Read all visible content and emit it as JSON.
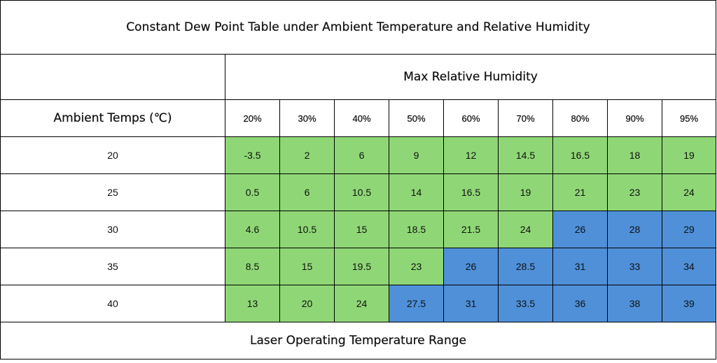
{
  "title": "Constant Dew Point Table under Ambient Temperature and Relative Humidity",
  "humidity_header": "Max Relative Humidity",
  "row_header": "Ambient Temps (℃)",
  "footer": "Laser Operating Temperature Range",
  "colors": {
    "green": "#8fd776",
    "blue": "#4f90d9"
  },
  "humidity_columns": [
    "20%",
    "30%",
    "40%",
    "50%",
    "60%",
    "70%",
    "80%",
    "90%",
    "95%"
  ],
  "rows": [
    {
      "temp": "20",
      "values": [
        "-3.5",
        "2",
        "6",
        "9",
        "12",
        "14.5",
        "16.5",
        "18",
        "19"
      ],
      "colors": [
        "green",
        "green",
        "green",
        "green",
        "green",
        "green",
        "green",
        "green",
        "green"
      ]
    },
    {
      "temp": "25",
      "values": [
        "0.5",
        "6",
        "10.5",
        "14",
        "16.5",
        "19",
        "21",
        "23",
        "24"
      ],
      "colors": [
        "green",
        "green",
        "green",
        "green",
        "green",
        "green",
        "green",
        "green",
        "green"
      ]
    },
    {
      "temp": "30",
      "values": [
        "4.6",
        "10.5",
        "15",
        "18.5",
        "21.5",
        "24",
        "26",
        "28",
        "29"
      ],
      "colors": [
        "green",
        "green",
        "green",
        "green",
        "green",
        "green",
        "blue",
        "blue",
        "blue"
      ]
    },
    {
      "temp": "35",
      "values": [
        "8.5",
        "15",
        "19.5",
        "23",
        "26",
        "28.5",
        "31",
        "33",
        "34"
      ],
      "colors": [
        "green",
        "green",
        "green",
        "green",
        "blue",
        "blue",
        "blue",
        "blue",
        "blue"
      ]
    },
    {
      "temp": "40",
      "values": [
        "13",
        "20",
        "24",
        "27.5",
        "31",
        "33.5",
        "36",
        "38",
        "39"
      ],
      "colors": [
        "green",
        "green",
        "green",
        "blue",
        "blue",
        "blue",
        "blue",
        "blue",
        "blue"
      ]
    }
  ]
}
